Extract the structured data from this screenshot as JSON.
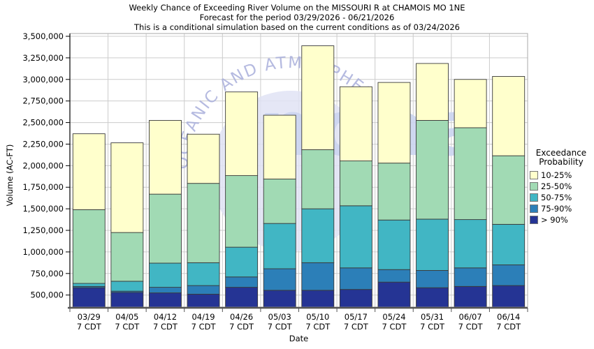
{
  "chart_data": {
    "type": "bar",
    "stacked": true,
    "title_lines": [
      "Weekly Chance of Exceeding River Volume on the MISSOURI R at CHAMOIS MO 1NE",
      "Forecast for the period 03/29/2026 - 06/21/2026",
      "This is a conditional simulation based on the current conditions as of 03/24/2026"
    ],
    "xlabel": "Date",
    "ylabel": "Volume (AC-FT)",
    "ylim": [
      360000,
      3500000
    ],
    "yticks": [
      500000,
      750000,
      1000000,
      1250000,
      1500000,
      1750000,
      2000000,
      2250000,
      2500000,
      2750000,
      3000000,
      3250000,
      3500000
    ],
    "grid": true,
    "categories": [
      "03/29",
      "04/05",
      "04/12",
      "04/19",
      "04/26",
      "05/03",
      "05/10",
      "05/17",
      "05/24",
      "05/31",
      "06/07",
      "06/14"
    ],
    "x_tick_suffix": "7 CDT",
    "bar_base": 360000,
    "series": [
      {
        "name": "> 90%",
        "color": "#253494",
        "tops": [
          585000,
          530000,
          525000,
          510000,
          590000,
          555000,
          555000,
          565000,
          650000,
          585000,
          600000,
          610000
        ]
      },
      {
        "name": "75-90%",
        "color": "#2c7fb8",
        "tops": [
          600000,
          545000,
          590000,
          610000,
          710000,
          805000,
          875000,
          815000,
          795000,
          785000,
          815000,
          850000
        ]
      },
      {
        "name": "50-75%",
        "color": "#41b6c4",
        "tops": [
          635000,
          660000,
          870000,
          875000,
          1055000,
          1330000,
          1500000,
          1535000,
          1370000,
          1380000,
          1375000,
          1320000
        ]
      },
      {
        "name": "25-50%",
        "color": "#a1dab4",
        "tops": [
          1490000,
          1225000,
          1670000,
          1795000,
          1885000,
          1845000,
          2185000,
          2055000,
          2030000,
          2525000,
          2440000,
          2115000
        ]
      },
      {
        "name": "10-25%",
        "color": "#ffffcc",
        "tops": [
          2370000,
          2265000,
          2525000,
          2365000,
          2855000,
          2585000,
          3390000,
          2915000,
          2965000,
          3185000,
          3000000,
          3035000
        ]
      }
    ]
  },
  "legend": {
    "title_line1": "Exceedance",
    "title_line2": "Probability",
    "items": [
      {
        "label": "10-25%",
        "color": "#ffffcc"
      },
      {
        "label": "25-50%",
        "color": "#a1dab4"
      },
      {
        "label": "50-75%",
        "color": "#41b6c4"
      },
      {
        "label": "75-90%",
        "color": "#2c7fb8"
      },
      {
        "label": "> 90%",
        "color": "#253494"
      }
    ]
  },
  "watermark": {
    "arc_text": "OCEANIC AND ATMOSPHERIC",
    "word": "noaa",
    "arc_color": "#a9afdb",
    "dome_color": "#e0e3f5",
    "word_color": "#ccd5f0"
  },
  "colors": {
    "grid": "#cccccc",
    "plot_border": "#aaaaaa",
    "axis": "#000000",
    "bottom_axis": "#555555",
    "bar_border": "#3a3a3a"
  }
}
